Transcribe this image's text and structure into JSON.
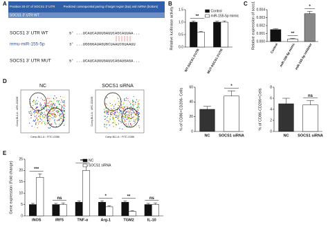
{
  "panels": [
    "A",
    "B",
    "C",
    "D",
    "E"
  ],
  "panel_a": {
    "header_left": "Position 20-27 of SOCS1 3' UTR",
    "header_right": "Predicted consequential pairing of target region (top) and miRNA (bottom)",
    "rows": [
      {
        "name": "SOCS1 3' UTR WT",
        "sequence": "5' ...UCAUCAUUUGAUUCAGCAUUAA..."
      },
      {
        "name": "mmu-miR-155-5p",
        "sequence": "3' ...UGGGGAUAGUGCUAAUCGUAAUU"
      },
      {
        "name": "SOCS1 3' UTR MUT",
        "sequence": "5' ...UCAUCAUUUGAUUCAGAUGAGA..."
      }
    ]
  },
  "panel_d_flow": {
    "titles": [
      "NC",
      "SOCS1 siRNA"
    ],
    "x_label": "Comp-BL1-A :: FITC-CD86",
    "y_label": "Comp-BL2-A :: APC-CD206"
  },
  "chart_data": [
    {
      "type": "bar",
      "ylabel": "Relative luciferase activity",
      "categories": [
        "WT-SOCS1-3'UTR",
        "MUT-SOCS1-3'UTR"
      ],
      "rotate_labels": true,
      "legend": true,
      "series": [
        {
          "name": "Control",
          "color": "#111111",
          "values": [
            1.0,
            1.0
          ],
          "errors": [
            0.04,
            0.04
          ]
        },
        {
          "name": "miR-155-5p mimic",
          "color": "#ffffff",
          "values": [
            0.6,
            1.0
          ],
          "errors": [
            0.03,
            0.05
          ]
        }
      ],
      "ylim": [
        0,
        1.5
      ],
      "yticks": [
        {
          "value": 0,
          "label": "0.0"
        },
        0.5,
        {
          "value": 1,
          "label": "1.0"
        },
        1.5
      ],
      "annotations": [
        "**",
        null
      ]
    },
    {
      "type": "bar",
      "ylabel": "Relative expression of socs1",
      "categories": [
        "Control",
        "miR-155-5p mimic",
        "miR-155-5p inhibitor"
      ],
      "rotate_labels": true,
      "values": [
        0.0015,
        0.0003,
        0.0035
      ],
      "errors": [
        0.0001,
        0.0001,
        0.0003
      ],
      "colors": [
        "#111111",
        "#ffffff",
        "#888888"
      ],
      "ylim": [
        0,
        0.004
      ],
      "yticks": [
        {
          "value": 0,
          "label": "0.000"
        },
        0.001,
        0.002,
        0.003,
        0.004
      ],
      "annotations": [
        null,
        "**",
        "*"
      ]
    },
    {
      "type": "bar",
      "ylabel": "% of CD86+CD206- Cells",
      "categories": [
        "NC",
        "SOCS1 siRNA"
      ],
      "values": [
        30,
        48
      ],
      "errors": [
        4,
        7
      ],
      "colors": [
        "#333333",
        "#ffffff"
      ],
      "ylim": [
        0,
        60
      ],
      "yticks": [
        0,
        20,
        40,
        60
      ],
      "annotations": [
        null,
        "*"
      ]
    },
    {
      "type": "bar",
      "ylabel": "% of CD86-CD206+Cells",
      "categories": [
        "NC",
        "SOCS1 siRNA"
      ],
      "values": [
        5,
        4.8
      ],
      "errors": [
        1,
        0.8
      ],
      "colors": [
        "#333333",
        "#ffffff"
      ],
      "ylim": [
        0,
        8
      ],
      "yticks": [
        0,
        2,
        4,
        6,
        8
      ],
      "annotations": [
        null,
        "ns"
      ]
    },
    {
      "type": "bar",
      "ylabel": "Gene expression (Fold change)",
      "categories": [
        "iNOS",
        "IRF5",
        "TNF-α",
        "Arg-1",
        "TGM2",
        "IL-10"
      ],
      "legend": true,
      "series": [
        {
          "name": "NC",
          "color": "#111111",
          "values": [
            5,
            5,
            6,
            6,
            6,
            5
          ],
          "errors": [
            0.5,
            0.5,
            0.6,
            0.6,
            0.5,
            0.5
          ]
        },
        {
          "name": "SOCS1 siRNA",
          "color": "#ffffff",
          "values": [
            17,
            5,
            20,
            4,
            2,
            5
          ],
          "errors": [
            1.5,
            0.6,
            2,
            0.5,
            0.3,
            0.6
          ]
        }
      ],
      "ylim": [
        0,
        25
      ],
      "yticks": [
        0,
        5,
        10,
        15,
        20,
        25
      ],
      "annotations": [
        "***",
        "ns",
        "***",
        "*",
        "**",
        "ns"
      ]
    }
  ]
}
